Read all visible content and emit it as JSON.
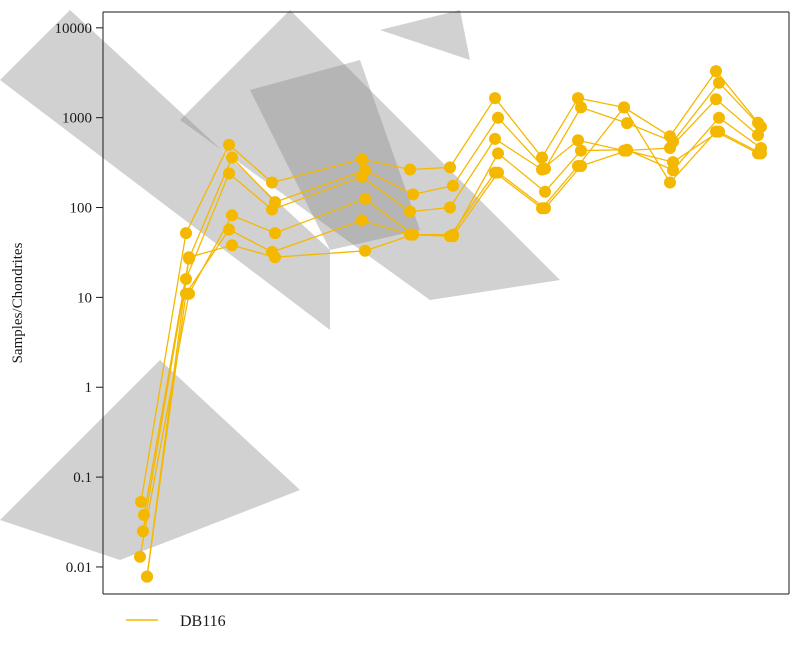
{
  "chart_data": {
    "type": "line",
    "y_scale": "log",
    "ylim": [
      0.005,
      15000
    ],
    "yticks": [
      "10000",
      "1000",
      "100",
      "10",
      "1",
      "0.1",
      "0.01"
    ],
    "ytick_values": [
      10000,
      1000,
      100,
      10,
      1,
      0.1,
      0.01
    ],
    "xlabel": "",
    "ylabel": "Samples/Chondrites",
    "grid": false,
    "legend_position": "bottom-left",
    "color": "#f5b800",
    "x": [
      1,
      2,
      3,
      4,
      6,
      7,
      8,
      9,
      10,
      11,
      12,
      13,
      14,
      15
    ],
    "series": [
      {
        "name": "DB116",
        "values": [
          0.053,
          52,
          500,
          190,
          345,
          265,
          280,
          1650,
          360,
          1650,
          1300,
          620,
          3300,
          880
        ]
      },
      {
        "name": "",
        "values": [
          0.038,
          27,
          360,
          115,
          260,
          140,
          175,
          1000,
          270,
          1300,
          870,
          540,
          2450,
          790
        ]
      },
      {
        "name": "",
        "values": [
          0.025,
          16,
          240,
          95,
          220,
          90,
          100,
          580,
          265,
          560,
          430,
          460,
          1600,
          640
        ]
      },
      {
        "name": "",
        "values": [
          0.013,
          11,
          82,
          52,
          125,
          50,
          50,
          400,
          150,
          430,
          440,
          260,
          1000,
          460
        ]
      },
      {
        "name": "",
        "values": [
          0.0078,
          11,
          57,
          32,
          72,
          50,
          48,
          245,
          98,
          290,
          1300,
          190,
          700,
          400
        ]
      },
      {
        "name": "",
        "values": [
          0.0078,
          28,
          38,
          28,
          33,
          50,
          48,
          245,
          98,
          290,
          430,
          320,
          700,
          400
        ]
      }
    ],
    "series_extra": [
      {
        "values": [
          1,
          1,
          1,
          1,
          1,
          1,
          1,
          1,
          1,
          1,
          1,
          1,
          1,
          1
        ]
      }
    ]
  }
}
